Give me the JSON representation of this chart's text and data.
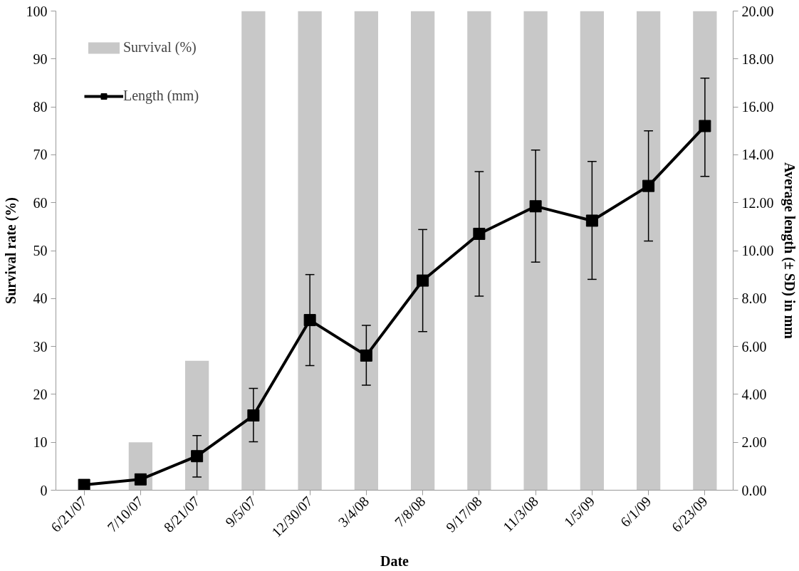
{
  "chart_data": {
    "type": "bar",
    "xlabel": "Date",
    "ylabel": "Survival rate (%)",
    "y2label": "Average length (± SD) in mm",
    "categories": [
      "6/21/07",
      "7/10/07",
      "8/21/07",
      "9/5/07",
      "12/30/07",
      "3/4/08",
      "7/8/08",
      "9/17/08",
      "11/3/08",
      "1/5/09",
      "6/1/09",
      "6/23/09"
    ],
    "series": [
      {
        "name": "Survival (%)",
        "color": "#c8c8c8",
        "values": [
          0,
          10,
          27,
          100,
          100,
          100,
          100,
          100,
          100,
          100,
          100,
          100
        ]
      },
      {
        "name": "Length (mm)",
        "type": "line",
        "axis": "y2",
        "color": "#000000",
        "marker": "square",
        "line_style": "solid",
        "values": [
          0.22,
          0.45,
          1.42,
          3.12,
          7.1,
          5.62,
          8.75,
          10.7,
          11.85,
          11.25,
          12.7,
          15.2
        ],
        "errors": [
          null,
          null,
          [
            0.55,
            2.28
          ],
          [
            2.02,
            4.25
          ],
          [
            5.2,
            9.0
          ],
          [
            4.38,
            6.88
          ],
          [
            6.62,
            10.88
          ],
          [
            8.1,
            13.3
          ],
          [
            9.52,
            14.2
          ],
          [
            8.8,
            13.72
          ],
          [
            10.4,
            15.0
          ],
          [
            13.1,
            17.2
          ]
        ]
      }
    ],
    "ylim": [
      0,
      100
    ],
    "yticks": [
      0,
      10,
      20,
      30,
      40,
      50,
      60,
      70,
      80,
      90,
      100
    ],
    "y2lim": [
      0,
      20
    ],
    "y2ticks": [
      {
        "value": 0,
        "label": "0.00"
      },
      {
        "value": 2,
        "label": "2.00"
      },
      {
        "value": 4,
        "label": "4.00"
      },
      {
        "value": 6,
        "label": "6.00"
      },
      {
        "value": 8,
        "label": "8.00"
      },
      {
        "value": 10,
        "label": "10.00"
      },
      {
        "value": 12,
        "label": "12.00"
      },
      {
        "value": 14,
        "label": "14.00"
      },
      {
        "value": 16,
        "label": "16.00"
      },
      {
        "value": 18,
        "label": "18.00"
      },
      {
        "value": 20,
        "label": "20.00"
      }
    ],
    "grid": false,
    "legend": "top left"
  }
}
